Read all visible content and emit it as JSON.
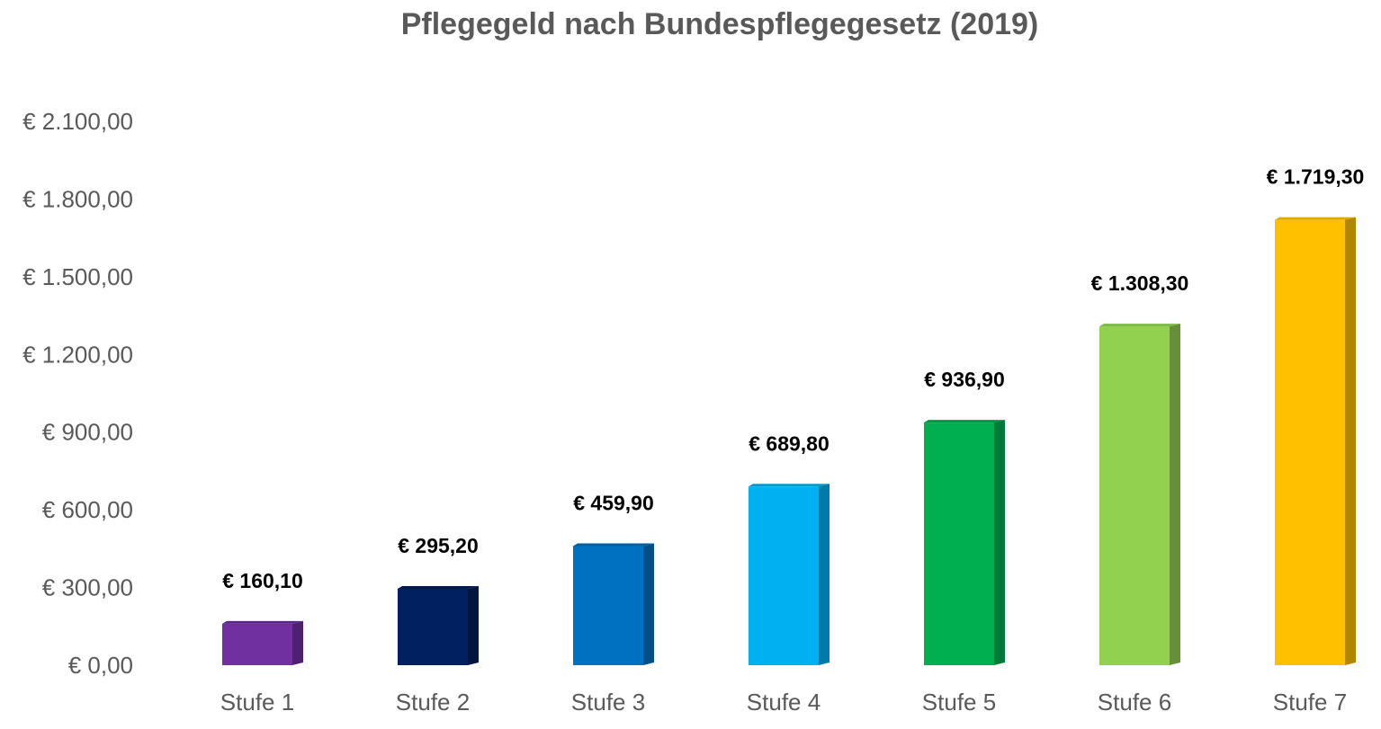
{
  "chart_data": {
    "type": "bar",
    "title": "Pflegegeld nach Bundespflegegesetz (2019)",
    "xlabel": "",
    "ylabel": "",
    "categories": [
      "Stufe 1",
      "Stufe 2",
      "Stufe 3",
      "Stufe 4",
      "Stufe 5",
      "Stufe 6",
      "Stufe 7"
    ],
    "values": [
      160.1,
      295.2,
      459.9,
      689.8,
      936.9,
      1308.3,
      1719.3
    ],
    "value_labels": [
      "€ 160,10",
      "€ 295,20",
      "€ 459,90",
      "€ 689,80",
      "€ 936,90",
      "€ 1.308,30",
      "€ 1.719,30"
    ],
    "ylim": [
      0,
      2100
    ],
    "yticks": [
      0,
      300,
      600,
      900,
      1200,
      1500,
      1800,
      2100
    ],
    "ytick_labels": [
      "€ 0,00",
      "€ 300,00",
      "€ 600,00",
      "€ 900,00",
      "€ 1.200,00",
      "€ 1.500,00",
      "€ 1.800,00",
      "€ 2.100,00"
    ],
    "grid": false,
    "legend": "none",
    "colors": [
      "#7030A0",
      "#002060",
      "#0070C0",
      "#00B0F0",
      "#00B050",
      "#92D050",
      "#FFC000"
    ],
    "side_colors": [
      "#4E2070",
      "#001540",
      "#004F88",
      "#007AA8",
      "#007A38",
      "#668F38",
      "#B38600"
    ],
    "top_colors": [
      "#5A268A",
      "#00194D",
      "#005EA3",
      "#0098D0",
      "#009444",
      "#7DB845",
      "#E0A900"
    ]
  }
}
